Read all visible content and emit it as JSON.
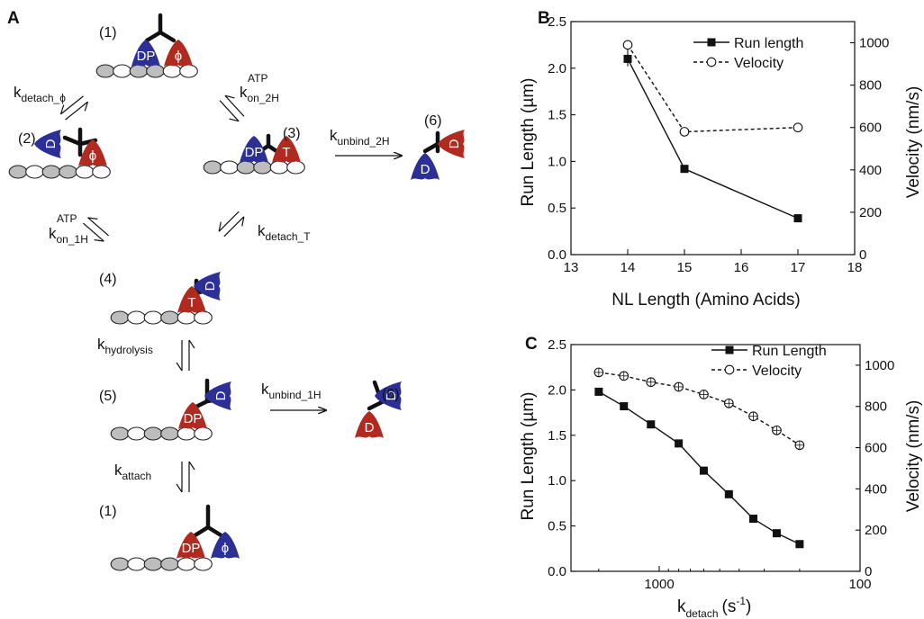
{
  "panel_labels": {
    "a": "A",
    "b": "B",
    "c": "C"
  },
  "diagram": {
    "states": [
      {
        "id": "1",
        "label": "(1)",
        "heads": [
          "DP",
          "ϕ"
        ]
      },
      {
        "id": "2",
        "label": "(2)",
        "heads": [
          "D",
          "ϕ"
        ]
      },
      {
        "id": "3",
        "label": "(3)",
        "heads": [
          "DP",
          "T"
        ]
      },
      {
        "id": "6a",
        "label": "(6)",
        "heads": [
          "D",
          "D"
        ]
      },
      {
        "id": "4",
        "label": "(4)",
        "heads": [
          "T",
          "D"
        ]
      },
      {
        "id": "5",
        "label": "(5)",
        "heads": [
          "DP",
          "D"
        ]
      },
      {
        "id": "6b",
        "label": "(6)",
        "heads": [
          "D",
          "D"
        ]
      },
      {
        "id": "1b",
        "label": "(1)",
        "heads": [
          "DP",
          "ϕ"
        ]
      }
    ],
    "rates": {
      "detach_phi": {
        "base": "k",
        "sub": "detach_ϕ"
      },
      "on_2h": {
        "base": "k",
        "sup": "ATP",
        "sub": "on_2H"
      },
      "unbind_2h": {
        "base": "k",
        "sub": "unbind_2H"
      },
      "on_1h": {
        "base": "k",
        "sup": "ATP",
        "sub": "on_1H"
      },
      "detach_t": {
        "base": "k",
        "sub": "detach_T"
      },
      "hydrolysis": {
        "base": "k",
        "sub": "hydrolysis"
      },
      "unbind_1h": {
        "base": "k",
        "sub": "unbind_1H"
      },
      "attach": {
        "base": "k",
        "sub": "attach"
      }
    },
    "colors": {
      "blue_head": "#2b2f96",
      "red_head": "#b02a20",
      "microtubule_gray": "#bdbdbd"
    }
  },
  "chart_data": [
    {
      "type": "line",
      "panel": "B",
      "xlabel": "NL Length (Amino Acids)",
      "ylabel": "Run Length (µm)",
      "y2label": "Velocity (nm/s)",
      "xlim": [
        13,
        18
      ],
      "ylim": [
        0.0,
        2.5
      ],
      "y2lim": [
        0,
        1100
      ],
      "xticks": [
        "13",
        "14",
        "15",
        "16",
        "17",
        "18"
      ],
      "yticks": [
        "0.0",
        "0.5",
        "1.0",
        "1.5",
        "2.0",
        "2.5"
      ],
      "y2ticks": [
        "0",
        "200",
        "400",
        "600",
        "800",
        "1000"
      ],
      "legend": [
        "Run length",
        "Velocity"
      ],
      "legend_position": "top-right",
      "series": [
        {
          "name": "Run length",
          "axis": "left",
          "x": [
            14,
            15,
            17
          ],
          "values": [
            2.1,
            0.92,
            0.39
          ],
          "style": "solid",
          "marker": "filled-square"
        },
        {
          "name": "Velocity",
          "axis": "right",
          "x": [
            14,
            15,
            17
          ],
          "values": [
            990,
            580,
            600
          ],
          "style": "dashed",
          "marker": "open-circle"
        }
      ]
    },
    {
      "type": "line",
      "panel": "C",
      "xlabel": "k_detach (s⁻¹)",
      "xlabel_base": "k",
      "xlabel_sub": "detach",
      "xlabel_unit": "(s",
      "xlabel_unit_sup": "-1",
      "xlabel_unit_end": ")",
      "ylabel": "Run Length (µm)",
      "y2label": "Velocity (nm/s)",
      "xscale": "log-reversed",
      "xticks": [
        "1000",
        "100"
      ],
      "ylim": [
        0.0,
        2.5
      ],
      "y2lim": [
        0,
        1100
      ],
      "yticks": [
        "0.0",
        "0.5",
        "1.0",
        "1.5",
        "2.0",
        "2.5"
      ],
      "y2ticks": [
        "0",
        "200",
        "400",
        "600",
        "800",
        "1000"
      ],
      "legend": [
        "Run Length",
        "Velocity"
      ],
      "legend_position": "top-right",
      "series": [
        {
          "name": "Run Length",
          "axis": "left",
          "x": [
            2000,
            1500,
            1100,
            800,
            600,
            450,
            340,
            260,
            200
          ],
          "values": [
            1.98,
            1.82,
            1.62,
            1.41,
            1.11,
            0.85,
            0.58,
            0.42,
            0.3
          ],
          "style": "solid",
          "marker": "filled-square"
        },
        {
          "name": "Velocity",
          "axis": "right",
          "x": [
            2000,
            1500,
            1100,
            800,
            600,
            450,
            340,
            260,
            200
          ],
          "values": [
            965,
            948,
            918,
            895,
            858,
            815,
            752,
            684,
            612
          ],
          "style": "dashed",
          "marker": "open-circle-cross"
        }
      ]
    }
  ]
}
